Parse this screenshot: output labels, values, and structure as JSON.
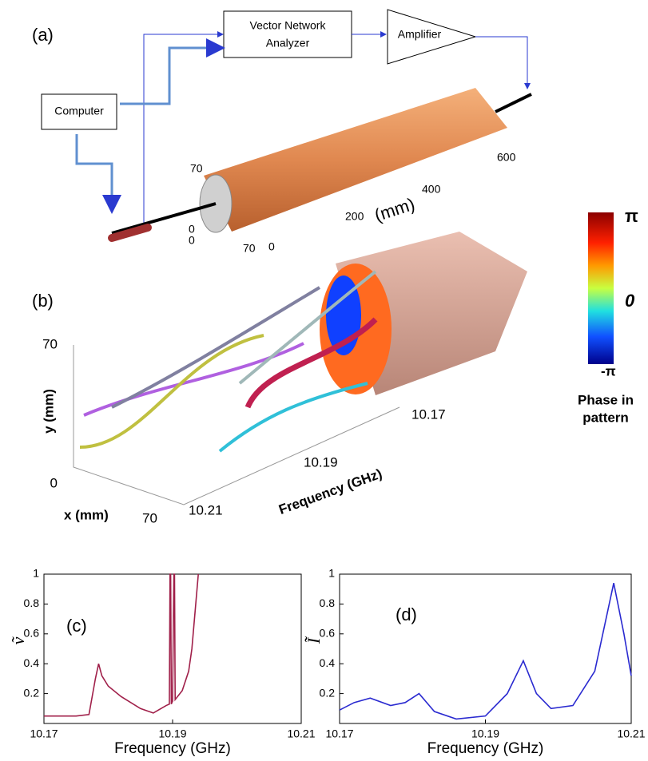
{
  "panel_a": {
    "label": "(a)",
    "vna": [
      "Vector Network",
      "Analyzer"
    ],
    "amplifier": "Amplifier",
    "computer": "Computer",
    "ticks": [
      "70",
      "0",
      "0",
      "70",
      "0",
      "200",
      "400",
      "600"
    ],
    "unit": "(mm)"
  },
  "panel_b": {
    "label": "(b)",
    "y_ticks": [
      "70",
      "0"
    ],
    "y_label": "y (mm)",
    "x_label": "x (mm)",
    "x_tick": "70",
    "f_ticks": [
      "10.17",
      "10.19",
      "10.21"
    ],
    "f_label": "Frequency (GHz)",
    "colorbar": {
      "ticks": [
        "π",
        "0",
        "-π"
      ],
      "label": [
        "Phase in",
        "pattern"
      ]
    }
  },
  "chart_data": [
    {
      "type": "line",
      "label": "(c)",
      "y_label": "ṽ",
      "x_label": "Frequency (GHz)",
      "color": "#a0204a",
      "x": [
        10.17,
        10.172,
        10.175,
        10.177,
        10.178,
        10.1785,
        10.179,
        10.18,
        10.182,
        10.185,
        10.187,
        10.189,
        10.1895,
        10.1896,
        10.1897,
        10.1898,
        10.19,
        10.1902,
        10.1903,
        10.1904,
        10.1915,
        10.1925,
        10.193,
        10.1935,
        10.194
      ],
      "values": [
        0.05,
        0.05,
        0.05,
        0.06,
        0.3,
        0.4,
        0.32,
        0.25,
        0.18,
        0.1,
        0.07,
        0.12,
        0.13,
        1,
        1,
        0.13,
        0.15,
        1,
        1,
        0.16,
        0.22,
        0.35,
        0.5,
        0.75,
        1
      ],
      "xlim": [
        10.17,
        10.21
      ],
      "ylim": [
        0,
        1
      ],
      "xticks": [
        10.17,
        10.19,
        10.21
      ],
      "yticks": [
        0.2,
        0.4,
        0.6,
        0.8,
        1
      ]
    },
    {
      "type": "line",
      "label": "(d)",
      "y_label": "Ĩ",
      "x_label": "Frequency (GHz)",
      "color": "#2a2ad0",
      "x": [
        10.17,
        10.172,
        10.1742,
        10.177,
        10.179,
        10.1809,
        10.183,
        10.186,
        10.19,
        10.193,
        10.1952,
        10.197,
        10.199,
        10.202,
        10.205,
        10.2076,
        10.209,
        10.21
      ],
      "values": [
        0.09,
        0.14,
        0.17,
        0.12,
        0.14,
        0.2,
        0.08,
        0.03,
        0.05,
        0.2,
        0.42,
        0.2,
        0.1,
        0.12,
        0.35,
        0.94,
        0.6,
        0.32
      ],
      "xlim": [
        10.17,
        10.21
      ],
      "ylim": [
        0,
        1
      ],
      "xticks": [
        10.17,
        10.19,
        10.21
      ],
      "yticks": [
        0.2,
        0.4,
        0.6,
        0.8,
        1
      ]
    }
  ]
}
